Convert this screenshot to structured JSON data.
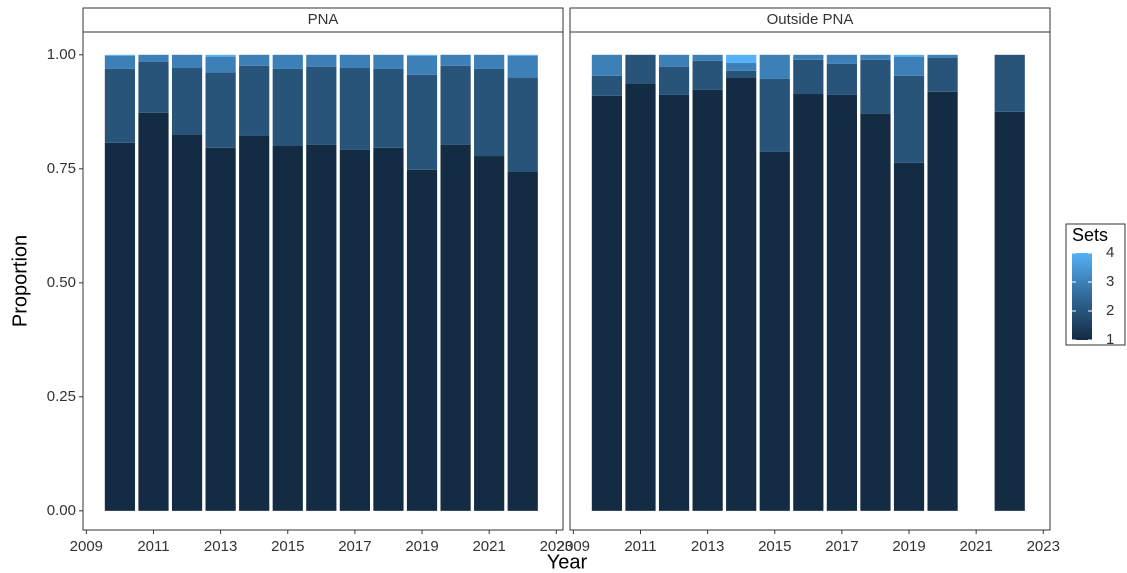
{
  "chart_data": [
    {
      "type": "bar",
      "stacked": true,
      "title": "PNA",
      "x_label": "Year",
      "y_label": "Proportion",
      "legend_title": "Sets",
      "x": [
        2010,
        2011,
        2012,
        2013,
        2014,
        2015,
        2016,
        2017,
        2018,
        2019,
        2020,
        2021,
        2022
      ],
      "xlim": [
        2008.9,
        2023.2
      ],
      "xticks": [
        2009,
        2011,
        2013,
        2015,
        2017,
        2019,
        2021,
        2023
      ],
      "ylim": [
        -0.042,
        1.05
      ],
      "yticks": [
        {
          "value": 0,
          "label": "0.00"
        },
        {
          "value": 0.25,
          "label": "0.25"
        },
        {
          "value": 0.5,
          "label": "0.50"
        },
        {
          "value": 0.75,
          "label": "0.75"
        },
        {
          "value": 1,
          "label": "1.00"
        }
      ],
      "series": [
        {
          "name": "1",
          "color": "#132b43",
          "values": [
            0.807,
            0.873,
            0.825,
            0.796,
            0.822,
            0.8,
            0.803,
            0.792,
            0.796,
            0.748,
            0.803,
            0.778,
            0.743
          ]
        },
        {
          "name": "2",
          "color": "#28547a",
          "values": [
            0.162,
            0.112,
            0.146,
            0.165,
            0.154,
            0.169,
            0.171,
            0.179,
            0.173,
            0.208,
            0.173,
            0.191,
            0.207
          ]
        },
        {
          "name": "3",
          "color": "#3d80b8",
          "values": [
            0.029,
            0.015,
            0.029,
            0.035,
            0.024,
            0.031,
            0.026,
            0.029,
            0.031,
            0.042,
            0.024,
            0.031,
            0.048
          ]
        },
        {
          "name": "4",
          "color": "#56b1f7",
          "values": [
            0.002,
            0,
            0,
            0.004,
            0,
            0,
            0,
            0,
            0,
            0.002,
            0,
            0,
            0.002
          ]
        }
      ]
    },
    {
      "type": "bar",
      "stacked": true,
      "title": "Outside PNA",
      "x": [
        2010,
        2011,
        2012,
        2013,
        2014,
        2015,
        2016,
        2017,
        2018,
        2019,
        2020,
        2022
      ],
      "xlim": [
        2008.9,
        2023.2
      ],
      "xticks": [
        2009,
        2011,
        2013,
        2015,
        2017,
        2019,
        2021,
        2023
      ],
      "ylim": [
        -0.042,
        1.05
      ],
      "series": [
        {
          "color": "#132b43",
          "values": [
            0.91,
            0.936,
            0.912,
            0.923,
            0.95,
            0.787,
            0.914,
            0.912,
            0.871,
            0.763,
            0.919,
            0.875
          ]
        },
        {
          "color": "#28547a",
          "values": [
            0.044,
            0.064,
            0.062,
            0.064,
            0.015,
            0.16,
            0.075,
            0.068,
            0.118,
            0.191,
            0.074,
            0.125
          ]
        },
        {
          "color": "#3d80b8",
          "values": [
            0.046,
            0,
            0.026,
            0.013,
            0.017,
            0.053,
            0.011,
            0.02,
            0.011,
            0.042,
            0.007,
            0
          ]
        },
        {
          "color": "#56b1f7",
          "values": [
            0,
            0,
            0,
            0,
            0.018,
            0,
            0,
            0,
            0,
            0.004,
            0,
            0
          ]
        }
      ]
    }
  ]
}
